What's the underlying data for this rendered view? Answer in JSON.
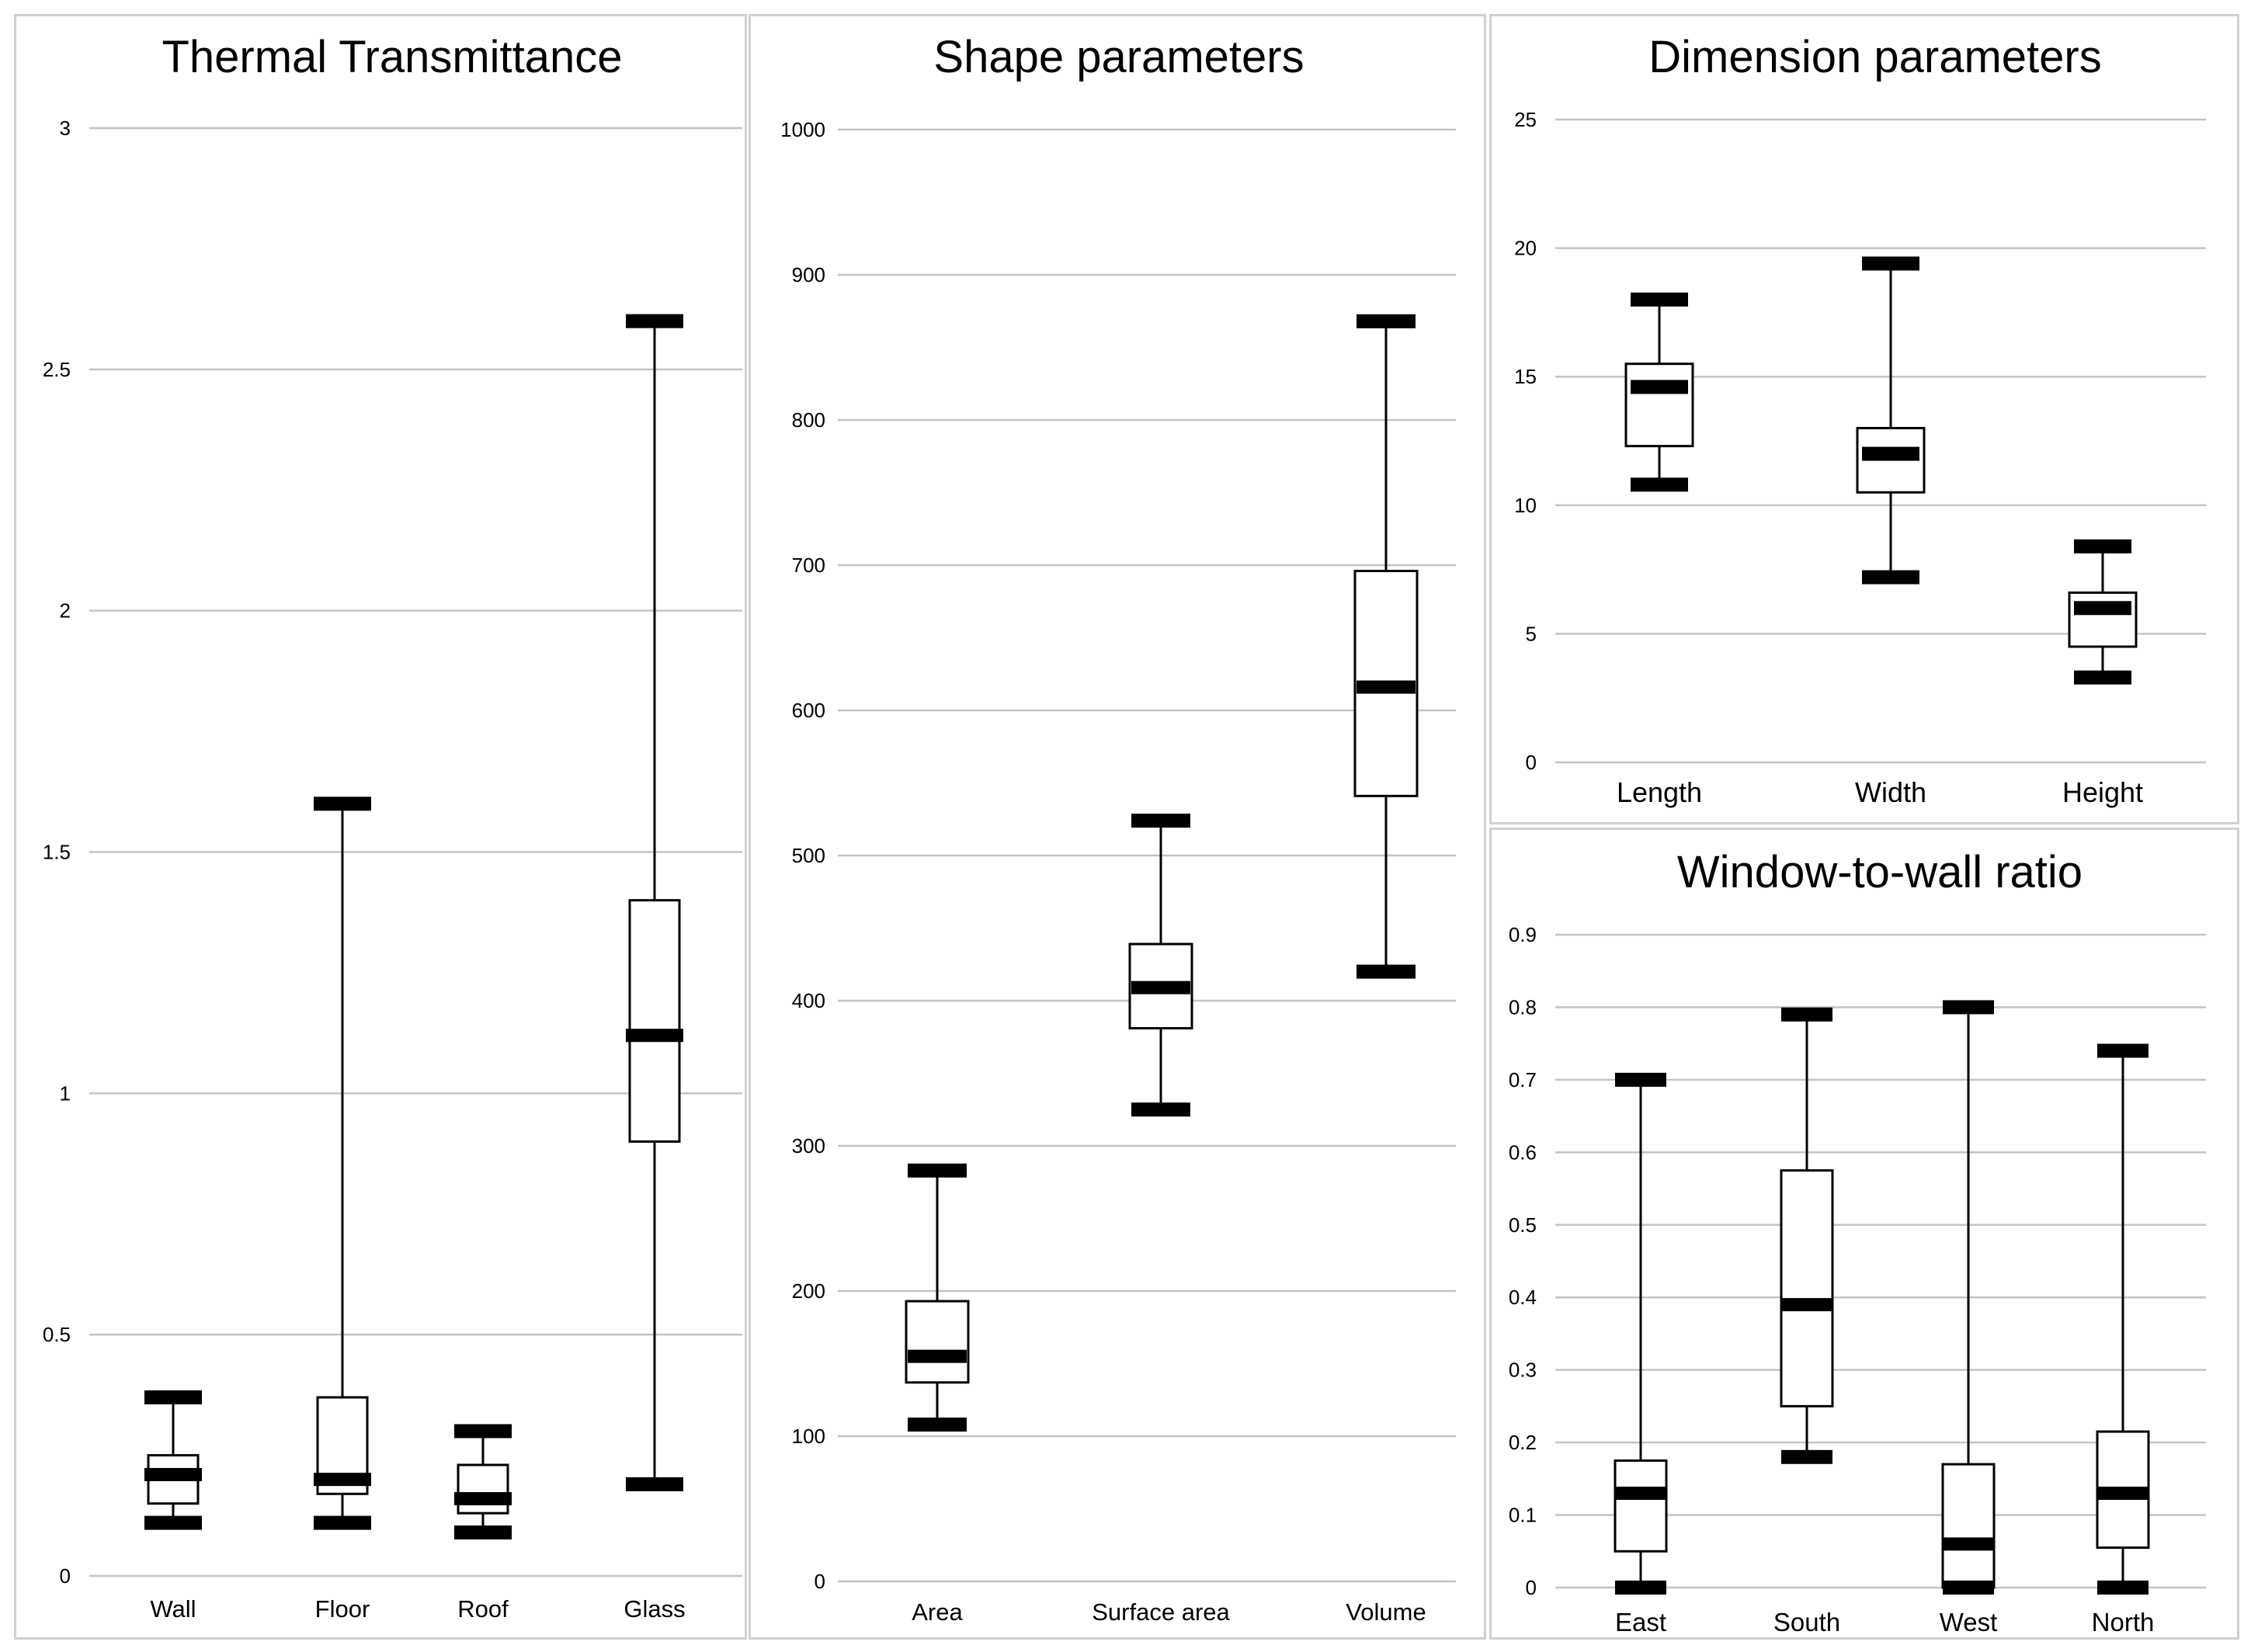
{
  "chart_data": [
    {
      "type": "boxplot",
      "title": "Thermal Transmittance",
      "ylim": [
        0,
        3
      ],
      "yticks": [
        0,
        0.5,
        1,
        1.5,
        2,
        2.5,
        3
      ],
      "ytick_labels": [
        "0",
        "0.5",
        "1",
        "1.5",
        "2",
        "2.5",
        "3"
      ],
      "categories": [
        "Wall",
        "Floor",
        "Roof",
        "Glass"
      ],
      "boxes": [
        {
          "min": 0.11,
          "q1": 0.15,
          "median": 0.21,
          "q3": 0.25,
          "max": 0.37
        },
        {
          "min": 0.11,
          "q1": 0.17,
          "median": 0.2,
          "q3": 0.37,
          "max": 1.6
        },
        {
          "min": 0.09,
          "q1": 0.13,
          "median": 0.16,
          "q3": 0.23,
          "max": 0.3
        },
        {
          "min": 0.19,
          "q1": 0.9,
          "median": 1.12,
          "q3": 1.4,
          "max": 2.6
        }
      ]
    },
    {
      "type": "boxplot",
      "title": "Shape parameters",
      "ylim": [
        0,
        1000
      ],
      "yticks": [
        0,
        100,
        200,
        300,
        400,
        500,
        600,
        700,
        800,
        900,
        1000
      ],
      "ytick_labels": [
        "0",
        "100",
        "200",
        "300",
        "400",
        "500",
        "600",
        "700",
        "800",
        "900",
        "1000"
      ],
      "categories": [
        "Area",
        "Surface area",
        "Volume"
      ],
      "boxes": [
        {
          "min": 108,
          "q1": 137,
          "median": 155,
          "q3": 193,
          "max": 283
        },
        {
          "min": 325,
          "q1": 381,
          "median": 409,
          "q3": 439,
          "max": 524
        },
        {
          "min": 420,
          "q1": 541,
          "median": 616,
          "q3": 696,
          "max": 868
        }
      ]
    },
    {
      "type": "boxplot",
      "title": "Dimension parameters",
      "ylim": [
        0,
        25
      ],
      "yticks": [
        0,
        5,
        10,
        15,
        20,
        25
      ],
      "ytick_labels": [
        "0",
        "5",
        "10",
        "15",
        "20",
        "25"
      ],
      "categories": [
        "Length",
        "Width",
        "Height"
      ],
      "boxes": [
        {
          "min": 10.8,
          "q1": 12.3,
          "median": 14.6,
          "q3": 15.5,
          "max": 18.0
        },
        {
          "min": 7.2,
          "q1": 10.5,
          "median": 12.0,
          "q3": 13.0,
          "max": 19.4
        },
        {
          "min": 3.3,
          "q1": 4.5,
          "median": 6.0,
          "q3": 6.6,
          "max": 8.4
        }
      ]
    },
    {
      "type": "boxplot",
      "title": "Window-to-wall ratio",
      "ylim": [
        0,
        0.9
      ],
      "yticks": [
        0,
        0.1,
        0.2,
        0.3,
        0.4,
        0.5,
        0.6,
        0.7,
        0.8,
        0.9
      ],
      "ytick_labels": [
        "0",
        "0.1",
        "0.2",
        "0.3",
        "0.4",
        "0.5",
        "0.6",
        "0.7",
        "0.8",
        "0.9"
      ],
      "categories": [
        "East",
        "South",
        "West",
        "North"
      ],
      "boxes": [
        {
          "min": 0.0,
          "q1": 0.05,
          "median": 0.13,
          "q3": 0.175,
          "max": 0.7
        },
        {
          "min": 0.18,
          "q1": 0.25,
          "median": 0.39,
          "q3": 0.575,
          "max": 0.79
        },
        {
          "min": 0.0,
          "q1": 0.0,
          "median": 0.06,
          "q3": 0.17,
          "max": 0.8
        },
        {
          "min": 0.0,
          "q1": 0.055,
          "median": 0.13,
          "q3": 0.215,
          "max": 0.74
        }
      ]
    }
  ]
}
